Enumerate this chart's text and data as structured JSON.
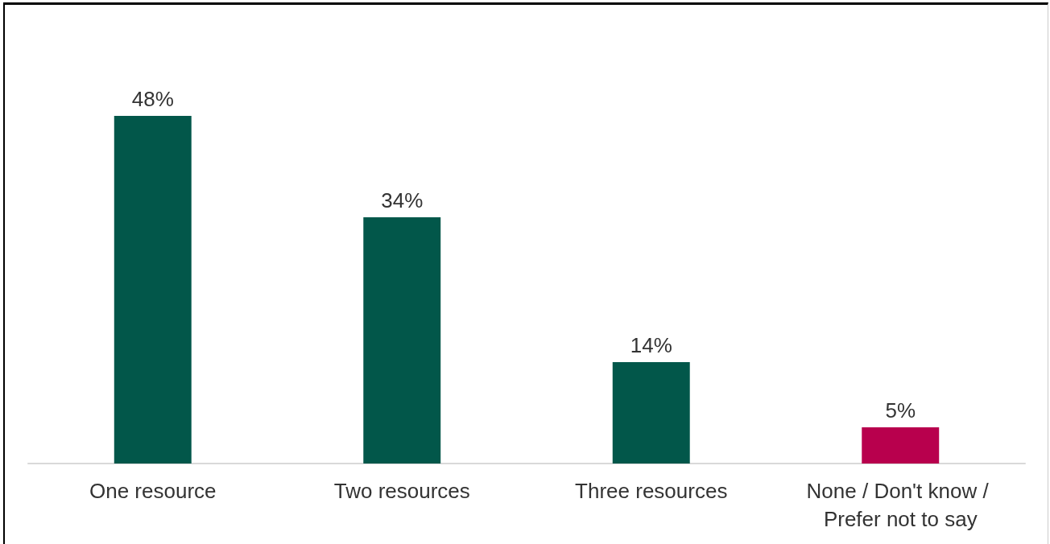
{
  "chart_data": {
    "type": "bar",
    "categories": [
      "One resource",
      "Two resources",
      "Three resources",
      "None / Don't know / Prefer not to say"
    ],
    "values": [
      48,
      34,
      14,
      5
    ],
    "colors": [
      "#02574a",
      "#02574a",
      "#02574a",
      "#b8004d"
    ],
    "value_labels": [
      "48%",
      "34%",
      "14%",
      "5%"
    ]
  }
}
